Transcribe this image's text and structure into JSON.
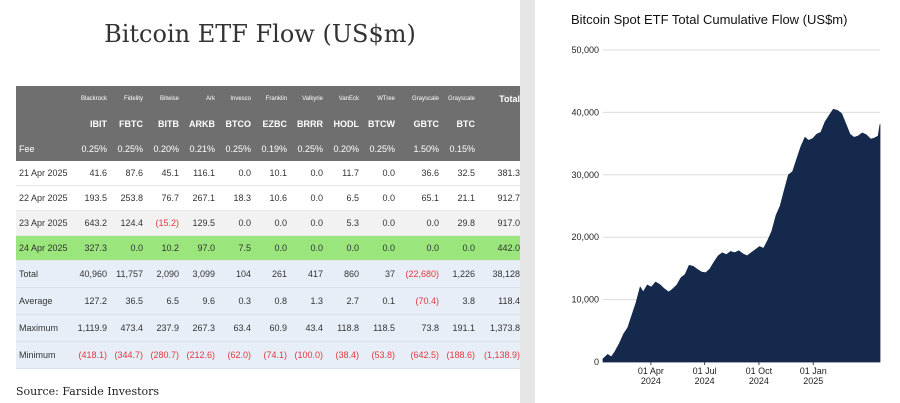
{
  "left": {
    "title": "Bitcoin ETF Flow (US$m)",
    "source": "Source: Farside Investors",
    "issuers": [
      "Blackrock",
      "Fidelity",
      "Bitwise",
      "Ark",
      "Invesco",
      "Franklin",
      "Valkyrie",
      "VanEck",
      "WTree",
      "Grayscale",
      "Grayscale"
    ],
    "total_label": "Total",
    "tickers": [
      "IBIT",
      "FBTC",
      "BITB",
      "ARKB",
      "BTCO",
      "EZBC",
      "BRRR",
      "HODL",
      "BTCW",
      "GBTC",
      "BTC"
    ],
    "fee_label": "Fee",
    "fees": [
      "0.25%",
      "0.25%",
      "0.20%",
      "0.21%",
      "0.25%",
      "0.19%",
      "0.25%",
      "0.20%",
      "0.25%",
      "1.50%",
      "0.15%"
    ],
    "rows": [
      {
        "label": "21 Apr 2025",
        "values": [
          "41.6",
          "87.6",
          "45.1",
          "116.1",
          "0.0",
          "10.1",
          "0.0",
          "11.7",
          "0.0",
          "36.6",
          "32.5",
          "381.3"
        ],
        "negative": []
      },
      {
        "label": "22 Apr 2025",
        "values": [
          "193.5",
          "253.8",
          "76.7",
          "267.1",
          "18.3",
          "10.6",
          "0.0",
          "6.5",
          "0.0",
          "65.1",
          "21.1",
          "912.7"
        ],
        "negative": []
      },
      {
        "label": "23 Apr 2025",
        "values": [
          "643.2",
          "124.4",
          "(15.2)",
          "129.5",
          "0.0",
          "0.0",
          "0.0",
          "5.3",
          "0.0",
          "0.0",
          "29.8",
          "917.0"
        ],
        "negative": [
          2
        ]
      },
      {
        "label": "24 Apr 2025",
        "values": [
          "327.3",
          "0.0",
          "10.2",
          "97.0",
          "7.5",
          "0.0",
          "0.0",
          "0.0",
          "0.0",
          "0.0",
          "0.0",
          "442.0"
        ],
        "negative": []
      }
    ],
    "stats": [
      {
        "label": "Total",
        "values": [
          "40,960",
          "11,757",
          "2,090",
          "3,099",
          "104",
          "261",
          "417",
          "860",
          "37",
          "(22,680)",
          "1,226",
          "38,128"
        ],
        "negative": [
          9
        ]
      },
      {
        "label": "Average",
        "values": [
          "127.2",
          "36.5",
          "6.5",
          "9.6",
          "0.3",
          "0.8",
          "1.3",
          "2.7",
          "0.1",
          "(70.4)",
          "3.8",
          "118.4"
        ],
        "negative": [
          9
        ]
      },
      {
        "label": "Maximum",
        "values": [
          "1,119.9",
          "473.4",
          "237.9",
          "267.3",
          "63.4",
          "60.9",
          "43.4",
          "118.8",
          "118.5",
          "73.8",
          "191.1",
          "1,373.8"
        ],
        "negative": []
      },
      {
        "label": "Minimum",
        "values": [
          "(418.1)",
          "(344.7)",
          "(280.7)",
          "(212.6)",
          "(62.0)",
          "(74.1)",
          "(100.0)",
          "(38.4)",
          "(53.8)",
          "(642.5)",
          "(188.6)",
          "(1,138.9)"
        ],
        "negative": [
          0,
          1,
          2,
          3,
          4,
          5,
          6,
          7,
          8,
          9,
          10,
          11
        ]
      }
    ],
    "colors": {
      "header_bg": "#6f6f6f",
      "highlight_row": "#9ae57c",
      "stat_bg": "#e8eef8",
      "negative": "#e0393e"
    }
  },
  "chart_data": {
    "type": "area",
    "title": "Bitcoin Spot ETF Total Cumulative Flow (US$m)",
    "ylim": [
      0,
      50000
    ],
    "yticks": [
      "0",
      "10,000",
      "20,000",
      "30,000",
      "40,000",
      "50,000"
    ],
    "xticks": [
      {
        "line1": "01 Apr",
        "line2": "2024",
        "x": "2024-04-01"
      },
      {
        "line1": "01 Jul",
        "line2": "2024",
        "x": "2024-07-01"
      },
      {
        "line1": "01 Oct",
        "line2": "2024",
        "x": "2024-10-01"
      },
      {
        "line1": "01 Jan",
        "line2": "2025",
        "x": "2025-01-01"
      }
    ],
    "xlim": [
      "2024-01-11",
      "2025-04-24"
    ],
    "fill_color": "#14294b",
    "grid": true,
    "points": [
      [
        "2024-01-11",
        500
      ],
      [
        "2024-01-19",
        1200
      ],
      [
        "2024-01-25",
        800
      ],
      [
        "2024-01-31",
        1600
      ],
      [
        "2024-02-08",
        3000
      ],
      [
        "2024-02-15",
        4500
      ],
      [
        "2024-02-22",
        5500
      ],
      [
        "2024-02-29",
        7500
      ],
      [
        "2024-03-07",
        9500
      ],
      [
        "2024-03-14",
        12000
      ],
      [
        "2024-03-19",
        11200
      ],
      [
        "2024-03-26",
        12300
      ],
      [
        "2024-04-02",
        12000
      ],
      [
        "2024-04-09",
        12800
      ],
      [
        "2024-04-16",
        12400
      ],
      [
        "2024-04-23",
        11800
      ],
      [
        "2024-05-01",
        11200
      ],
      [
        "2024-05-07",
        11600
      ],
      [
        "2024-05-15",
        12300
      ],
      [
        "2024-05-22",
        13500
      ],
      [
        "2024-05-29",
        14000
      ],
      [
        "2024-06-05",
        15500
      ],
      [
        "2024-06-12",
        15300
      ],
      [
        "2024-06-19",
        14800
      ],
      [
        "2024-06-26",
        14400
      ],
      [
        "2024-07-03",
        14300
      ],
      [
        "2024-07-10",
        14900
      ],
      [
        "2024-07-17",
        16000
      ],
      [
        "2024-07-24",
        17000
      ],
      [
        "2024-07-31",
        17500
      ],
      [
        "2024-08-07",
        17200
      ],
      [
        "2024-08-14",
        17700
      ],
      [
        "2024-08-21",
        17500
      ],
      [
        "2024-08-28",
        17800
      ],
      [
        "2024-09-04",
        17300
      ],
      [
        "2024-09-11",
        17000
      ],
      [
        "2024-09-18",
        17500
      ],
      [
        "2024-09-25",
        18000
      ],
      [
        "2024-10-02",
        18500
      ],
      [
        "2024-10-09",
        18200
      ],
      [
        "2024-10-16",
        19500
      ],
      [
        "2024-10-23",
        21000
      ],
      [
        "2024-10-30",
        23500
      ],
      [
        "2024-11-06",
        25000
      ],
      [
        "2024-11-13",
        27500
      ],
      [
        "2024-11-20",
        30000
      ],
      [
        "2024-11-27",
        30500
      ],
      [
        "2024-12-04",
        32500
      ],
      [
        "2024-12-11",
        34500
      ],
      [
        "2024-12-18",
        36000
      ],
      [
        "2024-12-24",
        35500
      ],
      [
        "2024-12-31",
        35800
      ],
      [
        "2025-01-07",
        36500
      ],
      [
        "2025-01-14",
        36800
      ],
      [
        "2025-01-21",
        38500
      ],
      [
        "2025-01-28",
        39500
      ],
      [
        "2025-02-04",
        40500
      ],
      [
        "2025-02-11",
        40300
      ],
      [
        "2025-02-18",
        39800
      ],
      [
        "2025-02-25",
        38200
      ],
      [
        "2025-03-04",
        36500
      ],
      [
        "2025-03-11",
        36000
      ],
      [
        "2025-03-18",
        36200
      ],
      [
        "2025-03-25",
        36700
      ],
      [
        "2025-04-01",
        36400
      ],
      [
        "2025-04-08",
        35700
      ],
      [
        "2025-04-15",
        35900
      ],
      [
        "2025-04-21",
        36200
      ],
      [
        "2025-04-24",
        38100
      ]
    ]
  }
}
